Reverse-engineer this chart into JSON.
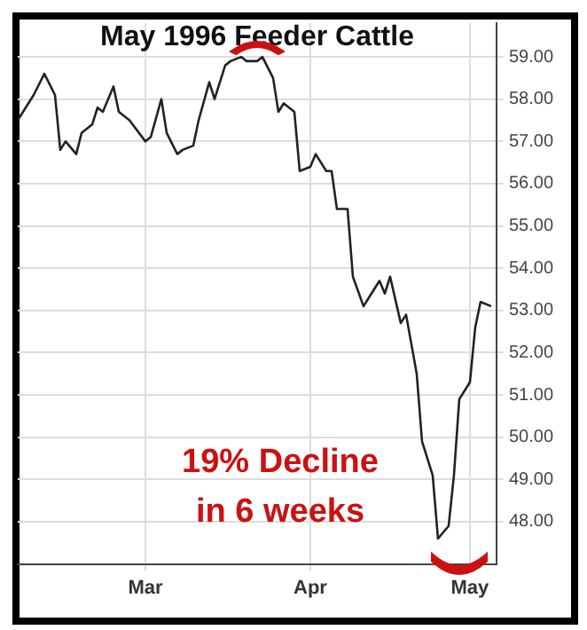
{
  "chart_data": {
    "type": "line",
    "title": "May 1996 Feeder Cattle",
    "color": "#222222",
    "x": [
      "1996-02-06",
      "1996-02-08",
      "1996-02-09",
      "1996-02-11",
      "1996-02-13",
      "1996-02-14",
      "1996-02-15",
      "1996-02-17",
      "1996-02-18",
      "1996-02-20",
      "1996-02-21",
      "1996-02-22",
      "1996-02-24",
      "1996-02-25",
      "1996-02-27",
      "1996-03-01",
      "1996-03-02",
      "1996-03-04",
      "1996-03-05",
      "1996-03-07",
      "1996-03-08",
      "1996-03-10",
      "1996-03-11",
      "1996-03-13",
      "1996-03-14",
      "1996-03-16",
      "1996-03-17",
      "1996-03-19",
      "1996-03-20",
      "1996-03-22",
      "1996-03-23",
      "1996-03-25",
      "1996-03-26",
      "1996-03-27",
      "1996-03-29",
      "1996-03-30",
      "1996-04-01",
      "1996-04-02",
      "1996-04-04",
      "1996-04-05",
      "1996-04-06",
      "1996-04-08",
      "1996-04-09",
      "1996-04-11",
      "1996-04-12",
      "1996-04-14",
      "1996-04-15",
      "1996-04-16",
      "1996-04-18",
      "1996-04-19",
      "1996-04-21",
      "1996-04-22",
      "1996-04-24",
      "1996-04-25",
      "1996-04-27",
      "1996-04-28",
      "1996-04-29",
      "1996-05-01",
      "1996-05-02",
      "1996-05-03",
      "1996-05-05"
    ],
    "values": [
      57.5,
      57.9,
      58.1,
      58.6,
      58.1,
      56.8,
      57.0,
      56.7,
      57.2,
      57.4,
      57.8,
      57.7,
      58.3,
      57.7,
      57.5,
      57.0,
      57.1,
      58.0,
      57.2,
      56.7,
      56.8,
      56.9,
      57.5,
      58.4,
      58.0,
      58.8,
      58.9,
      59.0,
      58.9,
      58.9,
      59.0,
      58.5,
      57.7,
      57.9,
      57.7,
      56.3,
      56.4,
      56.7,
      56.3,
      56.3,
      55.4,
      55.4,
      53.8,
      53.1,
      53.3,
      53.7,
      53.4,
      53.8,
      52.7,
      52.9,
      51.5,
      49.9,
      49.1,
      47.6,
      47.9,
      49.1,
      50.9,
      51.3,
      52.6,
      53.2,
      53.1
    ],
    "xlim": [
      "1996-02-06",
      "1996-05-06"
    ],
    "xticks": [
      {
        "value": "1996-03-01",
        "label": "Mar"
      },
      {
        "value": "1996-04-01",
        "label": "Apr"
      },
      {
        "value": "1996-05-01",
        "label": "May"
      }
    ],
    "ylim": [
      47,
      59.8
    ],
    "yticks": [
      {
        "value": 48,
        "label": "48.00"
      },
      {
        "value": 49,
        "label": "49.00"
      },
      {
        "value": 50,
        "label": "50.00"
      },
      {
        "value": 51,
        "label": "51.00"
      },
      {
        "value": 52,
        "label": "52.00"
      },
      {
        "value": 53,
        "label": "53.00"
      },
      {
        "value": 54,
        "label": "54.00"
      },
      {
        "value": 55,
        "label": "55.00"
      },
      {
        "value": 56,
        "label": "56.00"
      },
      {
        "value": 57,
        "label": "57.00"
      },
      {
        "value": 58,
        "label": "58.00"
      },
      {
        "value": 59,
        "label": "59.00"
      }
    ],
    "grid": true,
    "legend": false,
    "marker": "none",
    "line_style": "solid",
    "annotations": [
      "19% Decline\nin 6 weeks"
    ]
  }
}
